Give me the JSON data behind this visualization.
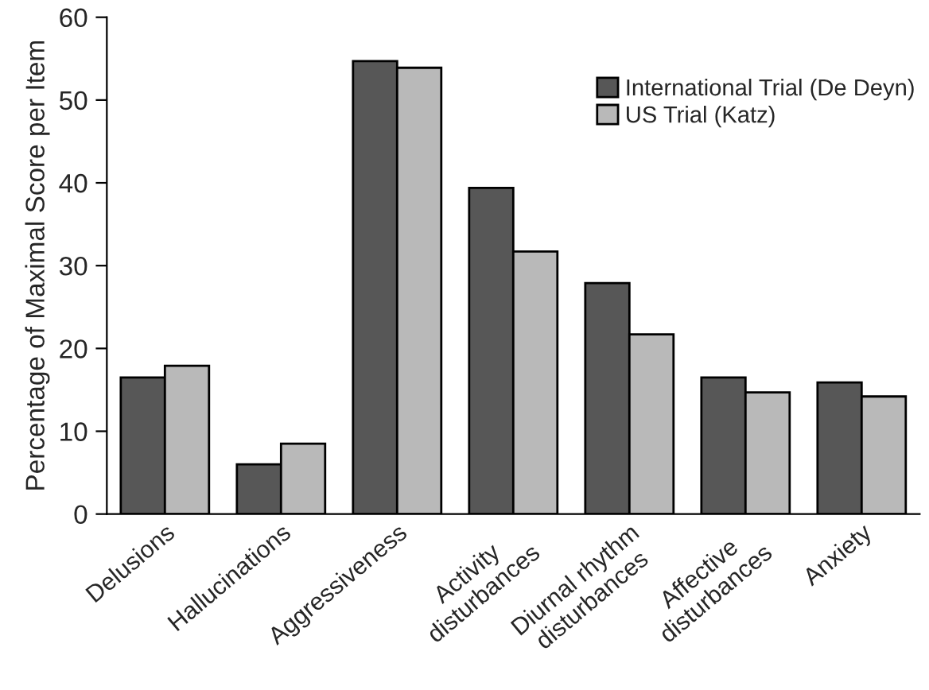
{
  "chart_data": {
    "type": "bar",
    "ylabel": "Percentage of Maximal Score per Item",
    "categories": [
      "Delusions",
      "Hallucinations",
      "Aggressiveness",
      "Activity\ndisturbances",
      "Diurnal rhythm\ndisturbances",
      "Affective\ndisturbances",
      "Anxiety"
    ],
    "series": [
      {
        "name": "International Trial (De Deyn)",
        "color": "#575757",
        "values": [
          16.5,
          6.0,
          54.7,
          39.4,
          27.9,
          16.5,
          15.9
        ]
      },
      {
        "name": "US Trial (Katz)",
        "color": "#b9b9b9",
        "values": [
          17.9,
          8.5,
          53.9,
          31.7,
          21.7,
          14.7,
          14.2
        ]
      }
    ],
    "ylim": [
      0,
      60
    ],
    "yticks": [
      0,
      10,
      20,
      30,
      40,
      50,
      60
    ],
    "grid": false,
    "legend": "top right"
  }
}
